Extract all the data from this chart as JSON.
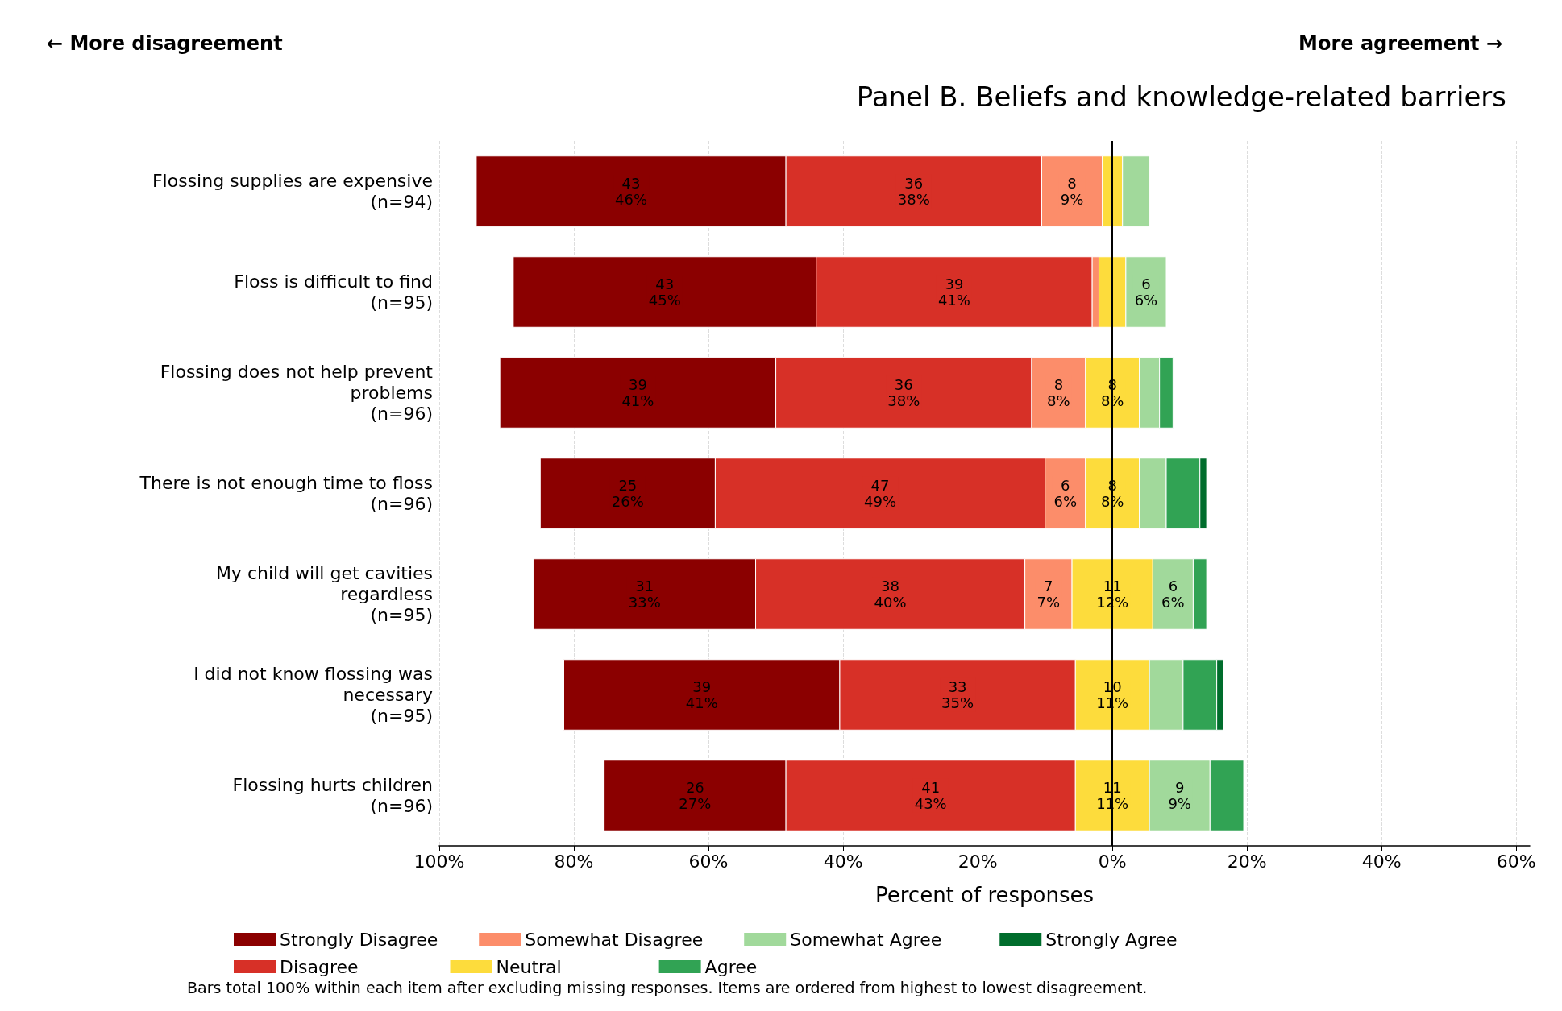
{
  "chart_data": {
    "type": "bar",
    "orientation": "horizontal",
    "title": "Panel B. Beliefs and knowledge-related barriers",
    "xlabel": "Percent of responses",
    "annotations": [
      "← More disagreement",
      "More agreement →",
      "Bars total 100% within each item after excluding missing responses. Items are ordered from highest to lowest disagreement."
    ],
    "categories": [
      "Flossing supplies are expensive\n(n=94)",
      "Floss is difficult to find\n(n=95)",
      "Flossing does not help prevent\nproblems\n(n=96)",
      "There is not enough time to floss\n(n=96)",
      "My child will get cavities\nregardless\n(n=95)",
      "I did not know flossing was\nnecessary\n(n=95)",
      "Flossing hurts children\n(n=96)"
    ],
    "series": [
      {
        "name": "Strongly Disagree",
        "color": "#8b0000",
        "values": [
          46,
          45,
          41,
          26,
          33,
          41,
          27
        ],
        "base": [
          -94.5,
          -89,
          -91,
          -85,
          -86,
          -81.5,
          -75.5
        ],
        "value_labels": [
          "43\n46%",
          "43\n45%",
          "39\n41%",
          "25\n26%",
          "31\n33%",
          "39\n41%",
          "26\n27%"
        ]
      },
      {
        "name": "Disagree",
        "color": "#d73027",
        "values": [
          38,
          41,
          38,
          49,
          40,
          35,
          43
        ],
        "base": [
          -48.5,
          -44,
          -50,
          -59,
          -53,
          -40.5,
          -48.5
        ],
        "value_labels": [
          "36\n38%",
          "39\n41%",
          "36\n38%",
          "47\n49%",
          "38\n40%",
          "33\n35%",
          "41\n43%"
        ]
      },
      {
        "name": "Somewhat Disagree",
        "color": "#fc8d6a",
        "values": [
          9,
          1,
          8,
          6,
          7,
          null,
          null
        ],
        "base": [
          -10.5,
          -3,
          -12,
          -10,
          -13,
          null,
          null
        ],
        "value_labels": [
          "8\n9%",
          null,
          "8\n8%",
          "6\n6%",
          "7\n7%",
          null,
          null
        ]
      },
      {
        "name": "Neutral",
        "color": "#fddc3c",
        "values": [
          3,
          4,
          8,
          8,
          12,
          11,
          11
        ],
        "base": [
          -1.5,
          -2,
          -4,
          -4,
          -6,
          -5.5,
          -5.5
        ],
        "value_labels": [
          null,
          null,
          "8\n8%",
          "8\n8%",
          "11\n12%",
          "10\n11%",
          "11\n11%"
        ]
      },
      {
        "name": "Somewhat Agree",
        "color": "#a1d99b",
        "values": [
          4,
          6,
          3,
          4,
          6,
          5,
          9
        ],
        "base": [
          1.5,
          2,
          4,
          4,
          6,
          5.5,
          5.5
        ],
        "value_labels": [
          null,
          "6\n6%",
          null,
          null,
          "6\n6%",
          null,
          "9\n9%"
        ]
      },
      {
        "name": "Agree",
        "color": "#31a354",
        "values": [
          null,
          null,
          2,
          5,
          2,
          5,
          5
        ],
        "base": [
          null,
          null,
          7,
          8,
          12,
          10.5,
          14.5
        ]
      },
      {
        "name": "Strongly Agree",
        "color": "#006d2c",
        "values": [
          null,
          null,
          null,
          1,
          null,
          1,
          null
        ],
        "base": [
          null,
          null,
          null,
          13,
          null,
          15.5,
          null
        ]
      }
    ],
    "xlim": [
      -100,
      62
    ],
    "xticks": [
      {
        "value": -100,
        "label": "100%"
      },
      {
        "value": -80,
        "label": "80%"
      },
      {
        "value": -60,
        "label": "60%"
      },
      {
        "value": -40,
        "label": "40%"
      },
      {
        "value": -20,
        "label": "20%"
      },
      {
        "value": 0,
        "label": "0%"
      },
      {
        "value": 20,
        "label": "20%"
      },
      {
        "value": 40,
        "label": "40%"
      },
      {
        "value": 60,
        "label": "60%"
      }
    ],
    "ref_lines": [
      {
        "axis": "x",
        "value": 0,
        "color": "#000000"
      }
    ],
    "grid": "x",
    "legend": "bottom"
  }
}
